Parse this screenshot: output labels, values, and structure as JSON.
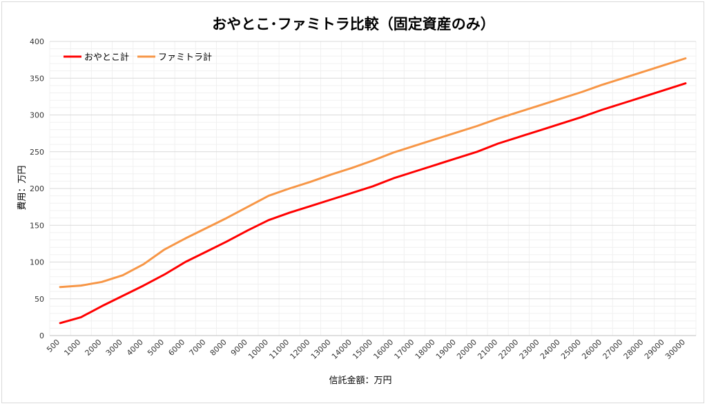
{
  "chart_data": {
    "type": "line",
    "title": "おやとこ･ファミトラ比較（固定資産のみ）",
    "xlabel": "信託金額：万円",
    "ylabel": "費用：万円",
    "ylim": [
      0,
      400
    ],
    "yticks": [
      0,
      50,
      100,
      150,
      200,
      250,
      300,
      350,
      400
    ],
    "grid": true,
    "legend_position": "top-left",
    "categories": [
      "500",
      "1000",
      "2000",
      "3000",
      "4000",
      "5000",
      "6000",
      "7000",
      "8000",
      "9000",
      "10000",
      "11000",
      "12000",
      "13000",
      "14000",
      "15000",
      "16000",
      "17000",
      "18000",
      "19000",
      "20000",
      "21000",
      "22000",
      "23000",
      "24000",
      "25000",
      "26000",
      "27000",
      "28000",
      "29000",
      "30000"
    ],
    "series": [
      {
        "name": "おやとこ計",
        "color": "#ff0000",
        "values": [
          17,
          25,
          40,
          54,
          68,
          83,
          100,
          114,
          128,
          143,
          157,
          167,
          176,
          185,
          194,
          203,
          214,
          223,
          232,
          241,
          250,
          261,
          270,
          279,
          288,
          297,
          307,
          316,
          325,
          334,
          343
        ]
      },
      {
        "name": "ファミトラ計",
        "color": "#f79646",
        "values": [
          66,
          68,
          73,
          82,
          97,
          117,
          132,
          146,
          160,
          175,
          190,
          200,
          209,
          219,
          228,
          238,
          249,
          258,
          267,
          276,
          285,
          295,
          304,
          313,
          322,
          331,
          341,
          350,
          359,
          368,
          377
        ]
      }
    ]
  }
}
